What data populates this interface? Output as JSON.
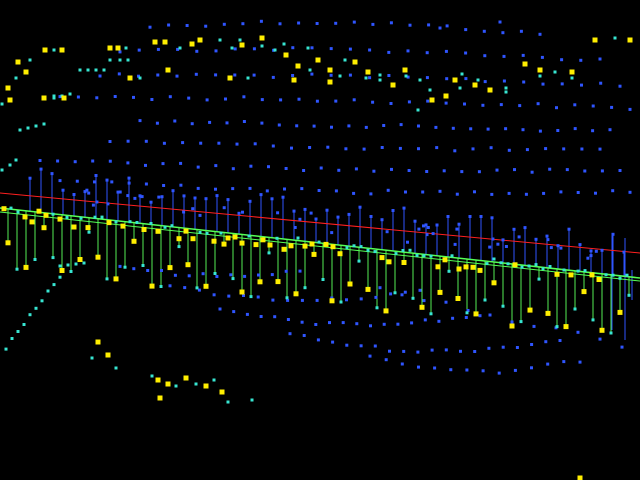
{
  "viewer": {
    "background": "#000000",
    "colors": {
      "blue_point": "#2f55ff",
      "cyan_point": "#37e6d2",
      "yellow_point": "#ffee00",
      "red_line": "#ff2020",
      "green_line": "#55ff55",
      "blue_stem": "#2f55ff",
      "green_stem": "#55ee55"
    },
    "layers": {
      "blue_points": "blue-point-cloud",
      "cyan_points": "cyan-point-cloud",
      "yellow_points": "yellow-point-cloud",
      "red_line": "reference-line",
      "green_line": "fitted-line",
      "stems": "residual-stems"
    }
  }
}
